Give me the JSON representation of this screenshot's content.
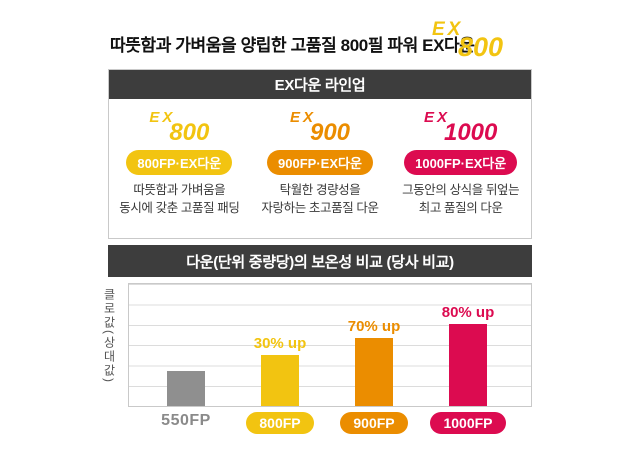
{
  "header": {
    "title": "따뜻함과 가벼움을 양립한 고품질 800필 파워 EX다운",
    "logo": {
      "brand": "EX",
      "number": "800",
      "color": "#F2C411"
    }
  },
  "lineup": {
    "header": "EX다운 라인업",
    "items": [
      {
        "logo_brand": "EX",
        "logo_number": "800",
        "badge": "800FP·EX다운",
        "desc_line1": "따뜻함과 가벼움을",
        "desc_line2": "동시에 갖춘 고품질 패딩",
        "color": "#F2C411"
      },
      {
        "logo_brand": "EX",
        "logo_number": "900",
        "badge": "900FP·EX다운",
        "desc_line1": "탁월한 경량성을",
        "desc_line2": "자랑하는 초고품질 다운",
        "color": "#EB8D00"
      },
      {
        "logo_brand": "EX",
        "logo_number": "1000",
        "badge": "1000FP·EX다운",
        "desc_line1": "그동안의 상식을 뒤엎는",
        "desc_line2": "최고 품질의 다운",
        "color": "#DC0B50"
      }
    ]
  },
  "chart_section": {
    "header": "다운(단위 중량당)의 보온성 비교 (당사 비교)"
  },
  "chart_data": {
    "type": "bar",
    "title": "다운(단위 중량당)의 보온성 비교 (당사 비교)",
    "ylabel": "클로값(상대값)",
    "xlabel": "",
    "categories": [
      "550FP",
      "800FP",
      "900FP",
      "1000FP"
    ],
    "values": [
      100,
      130,
      170,
      180
    ],
    "annotations": [
      "",
      "30% up",
      "70% up",
      "80% up"
    ],
    "bar_colors": [
      "#8F8F8F",
      "#F2C411",
      "#EB8D00",
      "#DC0B50"
    ],
    "bar_height_pct": [
      28,
      41,
      55,
      66
    ],
    "label_style": [
      "plain",
      "pill",
      "pill",
      "pill"
    ],
    "grid": true,
    "legend": "none",
    "axis_numeric_labels": false
  },
  "colors": {
    "section_header_bg": "#3d3d3d",
    "border": "#c9c9c9",
    "gridline": "#dcdcdc",
    "title_text": "#111111",
    "body_text": "#3a3a3a"
  }
}
